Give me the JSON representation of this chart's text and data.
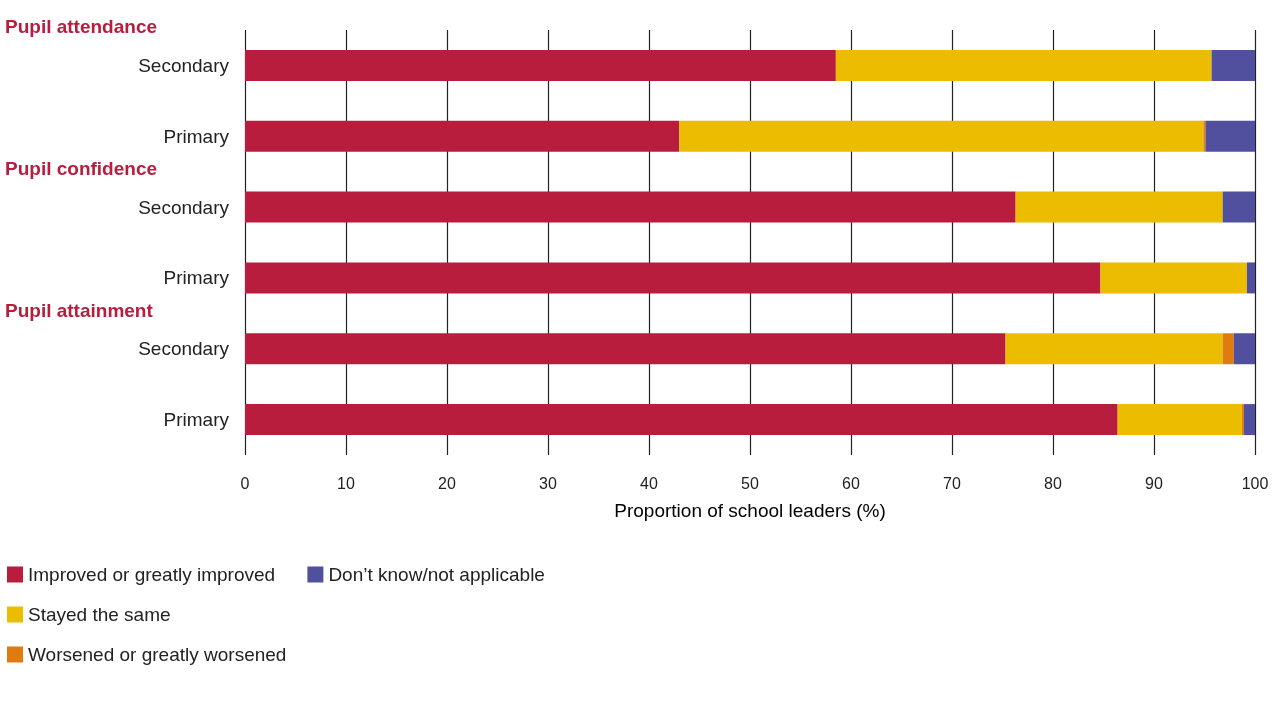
{
  "chart_data": {
    "type": "bar",
    "orientation": "horizontal",
    "stacked": true,
    "categories": [
      "Secondary",
      "Primary",
      "Secondary",
      "Primary",
      "Secondary",
      "Primary"
    ],
    "series": [
      {
        "name": "Improved or greatly improved",
        "color": "#b81d3e",
        "values": [
          58.5,
          43.0,
          76.3,
          84.7,
          75.3,
          86.4
        ]
      },
      {
        "name": "Stayed the same",
        "color": "#ebbc00",
        "values": [
          37.2,
          51.9,
          20.5,
          14.5,
          21.5,
          12.3
        ]
      },
      {
        "name": "Worsened or greatly worsened",
        "color": "#e07b10",
        "values": [
          0,
          0.2,
          0,
          0,
          1.1,
          0.2
        ]
      },
      {
        "name": "Don’t know/not applicable",
        "color": "#50509e",
        "values": [
          4.3,
          4.9,
          3.2,
          0.8,
          2.1,
          1.1
        ]
      }
    ],
    "annotations": [
      "Pupil attendance",
      "Pupil confidence",
      "Pupil attainment"
    ],
    "xlabel": "Proportion of school leaders (%)",
    "xlim": [
      0,
      100
    ],
    "xticks": [
      0,
      10,
      20,
      30,
      40,
      50,
      60,
      70,
      80,
      90,
      100
    ],
    "grid": "x",
    "legend": "bottom left"
  }
}
